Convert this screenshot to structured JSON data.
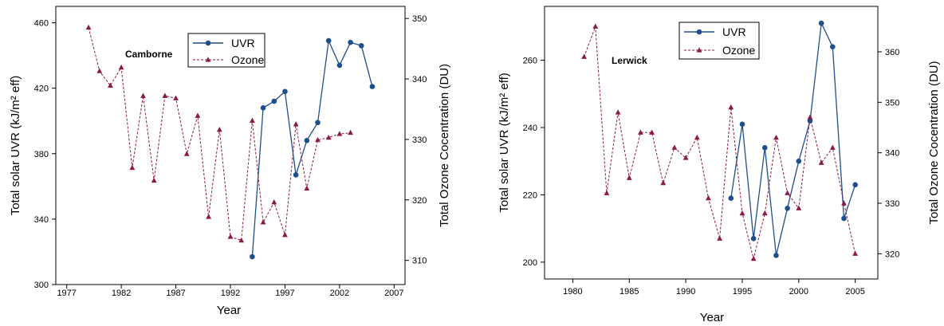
{
  "chart_data": [
    {
      "type": "line",
      "station": "Camborne",
      "xlabel": "Year",
      "ylabel_left": "Total solar UVR (kJ/m² eff)",
      "ylabel_right": "Total Ozone Cocentration (DU)",
      "xlim": [
        1976,
        2008
      ],
      "ylim_left": [
        300,
        470
      ],
      "ylim_right": [
        306,
        352
      ],
      "x_ticks": [
        1977,
        1982,
        1987,
        1992,
        1997,
        2002,
        2007
      ],
      "y_left_ticks": [
        300,
        340,
        380,
        420,
        460
      ],
      "y_right_ticks": [
        310,
        320,
        330,
        340,
        350
      ],
      "legend": [
        "UVR",
        "Ozone"
      ],
      "series": [
        {
          "name": "UVR",
          "axis": "left",
          "color": "#1f4e8c",
          "marker": "circle",
          "x": [
            1994,
            1995,
            1996,
            1997,
            1998,
            1999,
            2000,
            2001,
            2002,
            2003,
            2004,
            2005
          ],
          "values": [
            317,
            408,
            412,
            418,
            367,
            388,
            399,
            449,
            434,
            448,
            446,
            421
          ]
        },
        {
          "name": "Ozone",
          "axis": "right",
          "color": "#8b1a4a",
          "marker": "triangle",
          "dashed": true,
          "x": [
            1979,
            1980,
            1981,
            1982,
            1983,
            1984,
            1985,
            1986,
            1987,
            1988,
            1989,
            1990,
            1991,
            1992,
            1993,
            1994,
            1995,
            1996,
            1997,
            1998,
            1999,
            2000,
            2001,
            2002,
            2003
          ],
          "values": [
            348.5,
            341.3,
            338.9,
            341.9,
            325.3,
            337.2,
            323.2,
            337.2,
            336.8,
            327.6,
            333.9,
            317.2,
            331.6,
            313.9,
            313.3,
            333.1,
            316.3,
            319.6,
            314.2,
            332.5,
            321.9,
            329.9,
            330.3,
            330.9,
            331.1
          ]
        }
      ]
    },
    {
      "type": "line",
      "station": "Lerwick",
      "xlabel": "Year",
      "ylabel_left": "Total solar  UVR  (kJ/m² eff)",
      "ylabel_right": "Total Ozone Cocentration (DU)",
      "xlim": [
        1977.5,
        2007
      ],
      "ylim_left": [
        195,
        276
      ],
      "ylim_right": [
        315,
        369
      ],
      "x_ticks": [
        1980,
        1985,
        1990,
        1995,
        2000,
        2005
      ],
      "y_left_ticks": [
        200,
        220,
        240,
        260
      ],
      "y_right_ticks": [
        320,
        330,
        340,
        350,
        360
      ],
      "legend": [
        "UVR",
        "Ozone"
      ],
      "series": [
        {
          "name": "UVR",
          "axis": "left",
          "color": "#1f4e8c",
          "marker": "circle",
          "x": [
            1994,
            1995,
            1996,
            1997,
            1998,
            1999,
            2000,
            2001,
            2002,
            2003,
            2004,
            2005
          ],
          "values": [
            219,
            241,
            207,
            234,
            202,
            216,
            230,
            242,
            271,
            264,
            213,
            223
          ]
        },
        {
          "name": "Ozone",
          "axis": "right",
          "color": "#8b1a4a",
          "marker": "triangle",
          "dashed": true,
          "x": [
            1981,
            1982,
            1983,
            1984,
            1985,
            1986,
            1987,
            1988,
            1989,
            1990,
            1991,
            1992,
            1993,
            1994,
            1995,
            1996,
            1997,
            1998,
            1999,
            2000,
            2001,
            2002,
            2003,
            2004,
            2005
          ],
          "values": [
            359,
            365,
            332,
            348,
            335,
            344,
            344,
            334,
            341,
            339,
            343,
            331,
            323,
            349,
            328,
            319,
            328,
            343,
            332,
            329,
            347,
            338,
            341,
            330,
            320
          ]
        }
      ]
    }
  ]
}
